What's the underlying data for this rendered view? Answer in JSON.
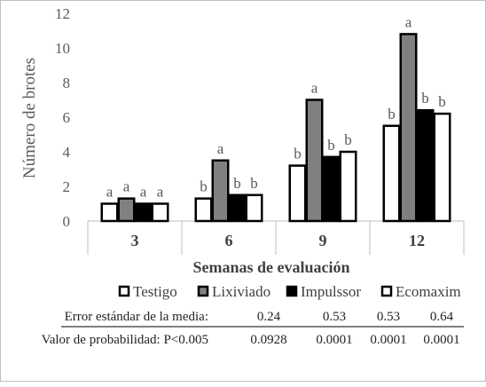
{
  "chart_data": {
    "type": "bar",
    "title": "",
    "xlabel": "Semanas de evaluación",
    "ylabel": "Número de brotes",
    "ylim": [
      0,
      12
    ],
    "yticks": [
      0,
      2,
      4,
      6,
      8,
      10,
      12
    ],
    "categories": [
      "3",
      "6",
      "9",
      "12"
    ],
    "legend_position": "bottom-right",
    "series": [
      {
        "name": "Testigo",
        "fill": "#ffffff",
        "values": [
          1.0,
          1.3,
          3.2,
          5.5
        ],
        "letters": [
          "a",
          "b",
          "b",
          "b"
        ]
      },
      {
        "name": "Lixiviado",
        "fill": "#808080",
        "values": [
          1.3,
          3.5,
          7.0,
          10.8
        ],
        "letters": [
          "a",
          "a",
          "a",
          "a"
        ]
      },
      {
        "name": "Impulssor",
        "fill": "#000000",
        "values": [
          1.0,
          1.5,
          3.7,
          6.4
        ],
        "letters": [
          "a",
          "b",
          "b",
          "b"
        ]
      },
      {
        "name": "Ecomaxim",
        "fill": "#ffffff",
        "values": [
          1.0,
          1.5,
          4.0,
          6.2
        ],
        "letters": [
          "a",
          "b",
          "b",
          "b"
        ]
      }
    ],
    "stats_table": [
      {
        "label": "Error estándar de la media:",
        "values": [
          "0.24",
          "0.53",
          "0.53",
          "0.64"
        ]
      },
      {
        "label": "Valor de probabilidad: P<0.005",
        "values": [
          "0.0928",
          "0.0001",
          "0.0001",
          "0.0001"
        ]
      }
    ]
  }
}
